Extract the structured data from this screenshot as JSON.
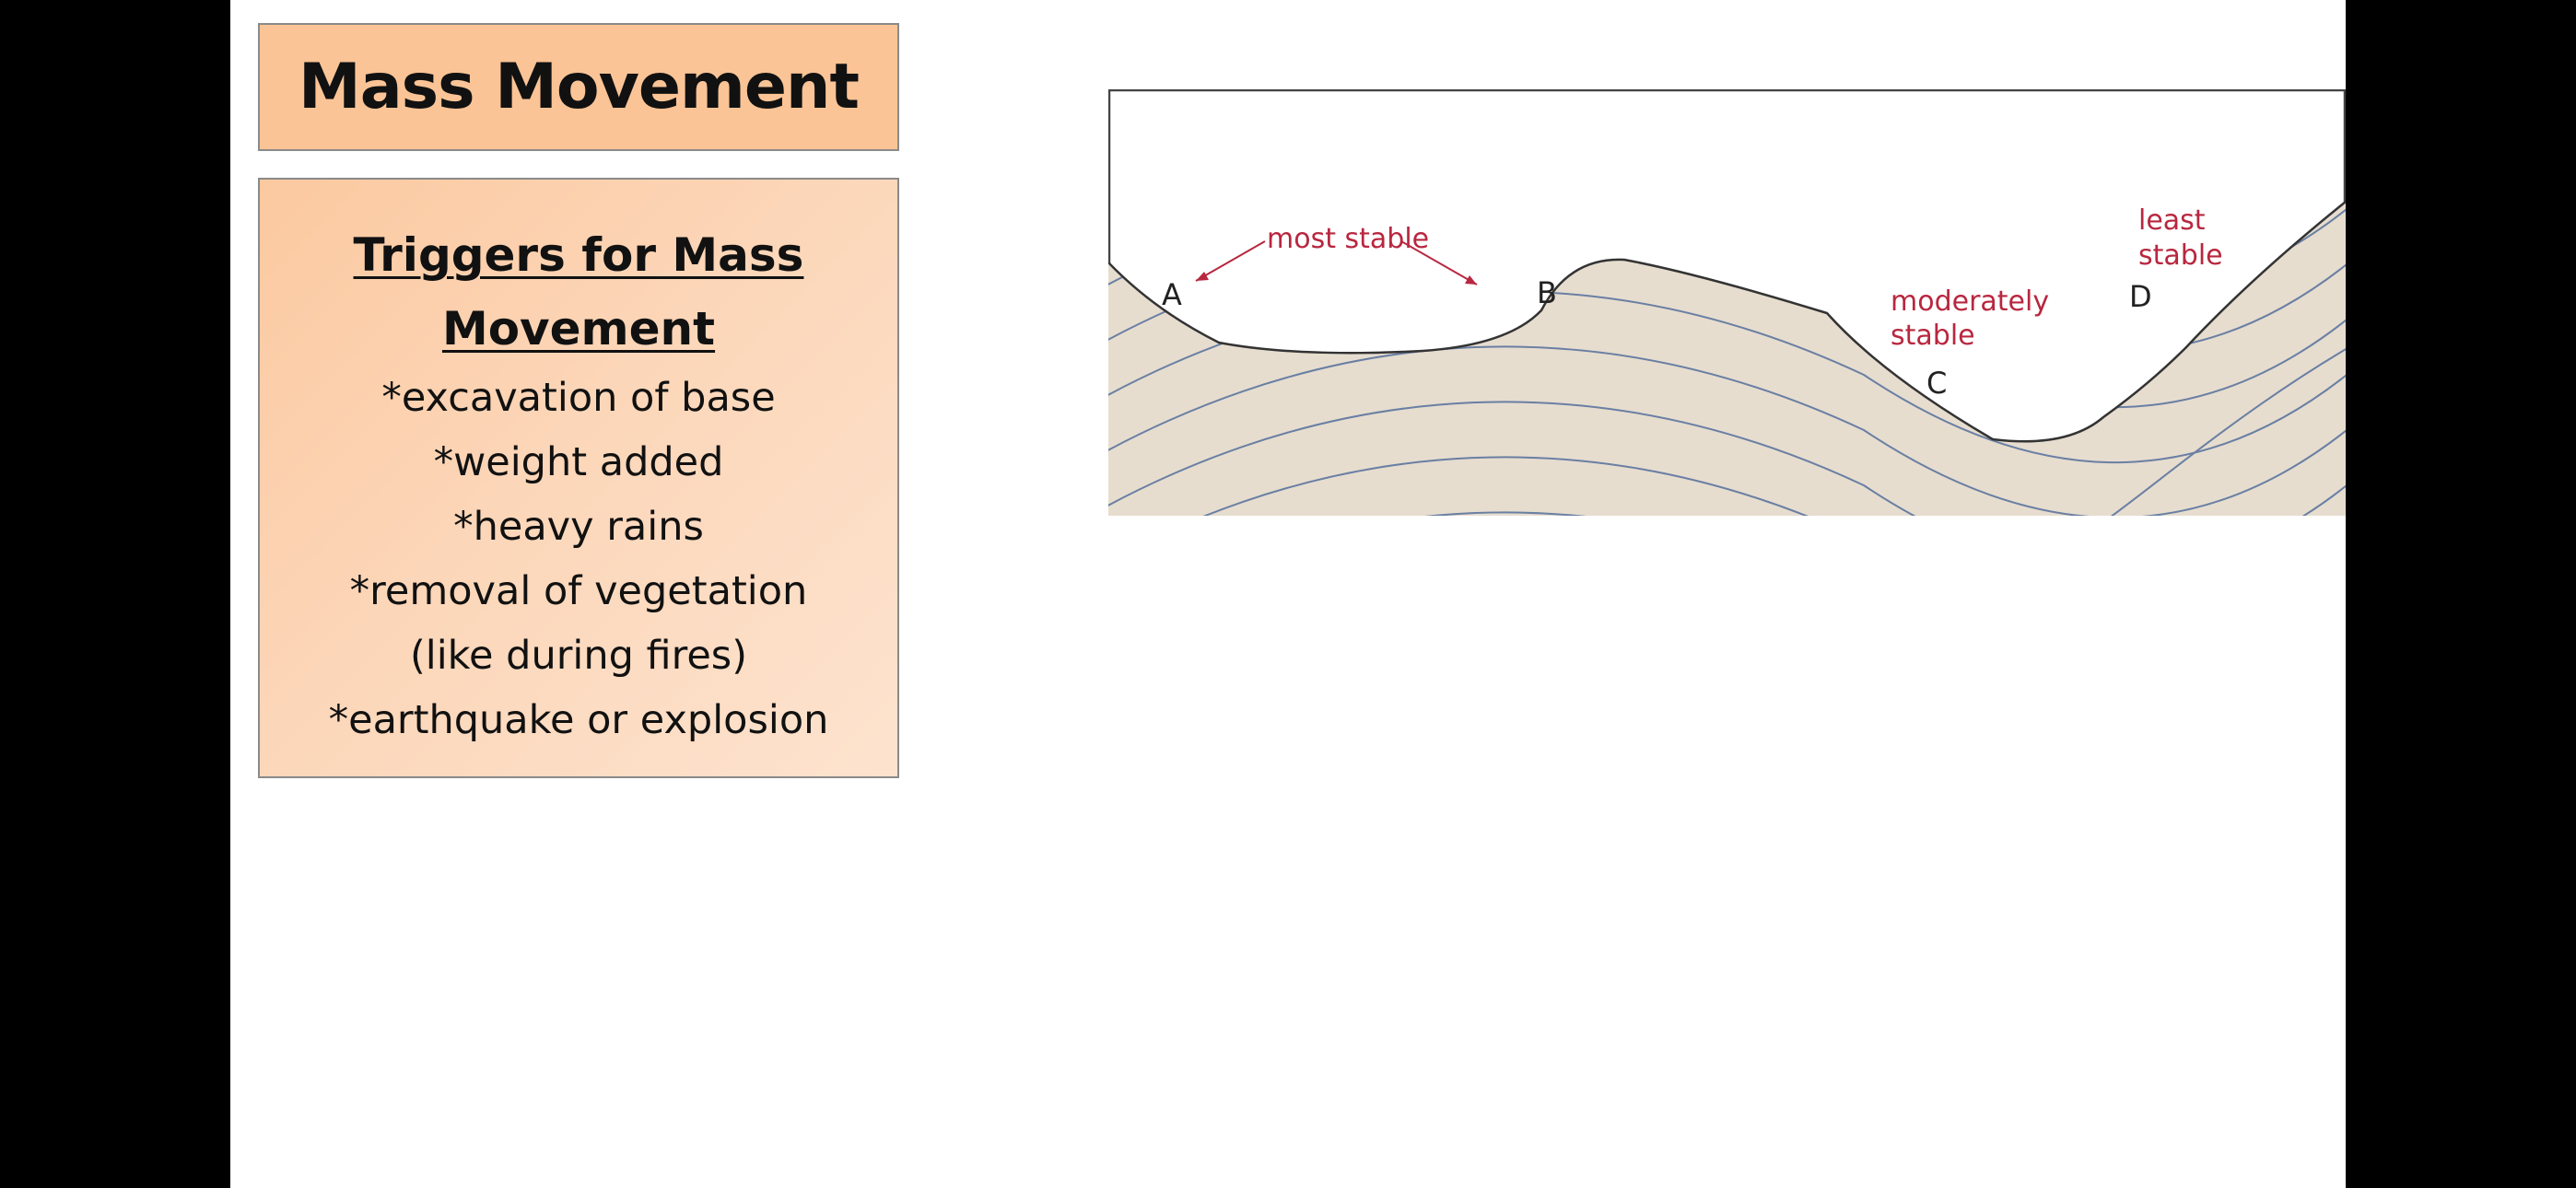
{
  "title": "Mass Movement",
  "triggers": {
    "heading": "Triggers for Mass Movement",
    "items": [
      "*excavation of base",
      "*weight added",
      "*heavy rains",
      "*removal of vegetation",
      "(like during fires)",
      "*earthquake or explosion"
    ]
  },
  "diagram": {
    "labels": {
      "most_stable": "most stable",
      "moderately_line1": "moderately",
      "moderately_line2": "stable",
      "least_line1": "least",
      "least_line2": "stable",
      "point_a": "A",
      "point_b": "B",
      "point_c": "C",
      "point_d": "D"
    },
    "colors": {
      "ground_fill": "#e6ddcf",
      "strata_lines": "#6a7fa3",
      "outline": "#333333",
      "label_red": "#b8273f"
    }
  }
}
